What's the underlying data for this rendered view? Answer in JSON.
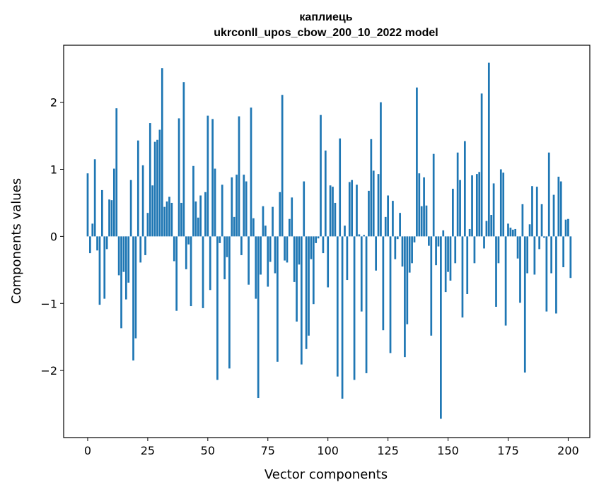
{
  "chart_data": {
    "type": "bar",
    "title": "каплиець",
    "subtitle": "ukrconll_upos_cbow_200_10_2022 model",
    "xlabel": "Vector components",
    "ylabel": "Components values",
    "xlim": [
      -10,
      209
    ],
    "ylim": [
      -3.0,
      2.85
    ],
    "xticks": [
      0,
      25,
      50,
      75,
      100,
      125,
      150,
      175,
      200
    ],
    "xtick_labels": [
      "0",
      "25",
      "50",
      "75",
      "100",
      "125",
      "150",
      "175",
      "200"
    ],
    "yticks": [
      -2,
      -1,
      0,
      1,
      2
    ],
    "ytick_labels": [
      "−2",
      "−1",
      "0",
      "1",
      "2"
    ],
    "grid": false,
    "bar_color": "#1f77b4",
    "values": [
      0.94,
      -0.25,
      0.19,
      1.15,
      -0.21,
      -1.02,
      0.69,
      -0.93,
      -0.19,
      0.55,
      0.54,
      1.01,
      1.91,
      -0.58,
      -1.37,
      -0.53,
      -0.94,
      -0.69,
      0.84,
      -1.85,
      -1.52,
      1.43,
      -0.39,
      1.06,
      -0.28,
      0.35,
      1.69,
      0.76,
      1.41,
      1.44,
      1.59,
      2.51,
      0.44,
      0.52,
      0.59,
      0.5,
      -0.37,
      -1.11,
      1.76,
      0.5,
      2.3,
      -0.49,
      -0.12,
      -1.04,
      1.05,
      0.52,
      0.28,
      0.61,
      -1.07,
      0.66,
      1.8,
      -0.8,
      1.75,
      1.01,
      -2.14,
      -0.1,
      0.77,
      -0.64,
      -0.31,
      -1.97,
      0.88,
      0.29,
      0.92,
      1.79,
      -0.28,
      0.92,
      0.82,
      -0.72,
      1.92,
      0.27,
      -0.93,
      -2.41,
      -0.57,
      0.45,
      0.16,
      -0.75,
      -0.38,
      0.44,
      -0.55,
      -1.87,
      0.66,
      2.11,
      -0.36,
      -0.39,
      0.26,
      0.58,
      -0.68,
      -1.27,
      -0.42,
      -1.91,
      0.82,
      -1.68,
      -1.48,
      -0.34,
      -1.01,
      -0.1,
      -0.03,
      1.81,
      -0.25,
      1.28,
      -0.76,
      0.76,
      0.74,
      0.5,
      -2.09,
      1.46,
      -2.42,
      0.16,
      -0.65,
      0.81,
      0.84,
      -2.14,
      0.77,
      0.03,
      -1.12,
      0.02,
      -2.04,
      0.68,
      1.45,
      0.98,
      -0.51,
      0.93,
      2.0,
      -1.4,
      0.29,
      0.61,
      -1.74,
      0.53,
      -0.34,
      -0.04,
      0.35,
      -0.45,
      -1.8,
      -1.31,
      -0.54,
      -0.4,
      -0.09,
      2.22,
      0.94,
      0.45,
      0.88,
      0.46,
      -0.14,
      -1.48,
      1.23,
      -0.43,
      -0.15,
      -2.72,
      0.09,
      -0.83,
      -0.53,
      -0.66,
      0.71,
      -0.4,
      1.25,
      0.84,
      -1.21,
      1.42,
      -0.86,
      0.11,
      0.91,
      -0.4,
      0.93,
      0.96,
      2.13,
      -0.18,
      0.23,
      2.59,
      0.32,
      0.79,
      -1.05,
      -0.4,
      1.0,
      0.95,
      -1.33,
      0.19,
      0.13,
      0.1,
      0.11,
      -0.33,
      -0.99,
      0.48,
      -2.03,
      -0.55,
      0.18,
      0.75,
      -0.57,
      0.74,
      -0.19,
      0.48,
      -0.02,
      -1.12,
      1.25,
      -0.55,
      0.62,
      -1.15,
      0.89,
      0.82,
      -0.46,
      0.25,
      0.26,
      -0.62
    ]
  }
}
